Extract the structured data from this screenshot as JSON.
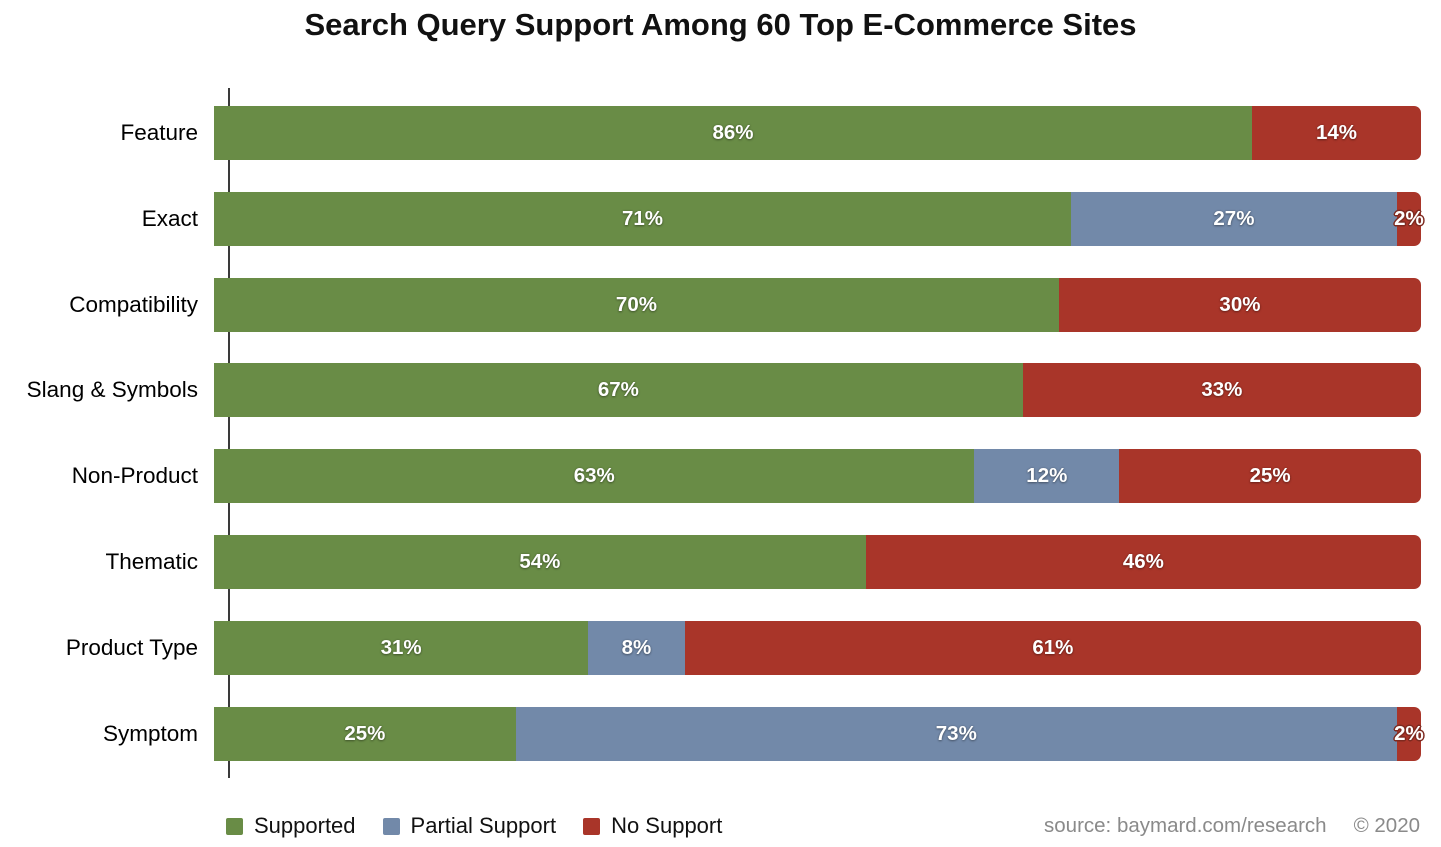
{
  "title": "Search Query Support Among 60 Top E-Commerce Sites",
  "colors": {
    "supported": "#698c46",
    "partial": "#7289a9",
    "none": "#a93529"
  },
  "legend": [
    {
      "key": "supported",
      "label": "Supported"
    },
    {
      "key": "partial",
      "label": "Partial Support"
    },
    {
      "key": "none",
      "label": "No Support"
    }
  ],
  "source": {
    "text": "source: baymard.com/research",
    "copyright": "© 2020"
  },
  "chart_data": {
    "type": "bar",
    "stacked": true,
    "orientation": "horizontal",
    "unit": "%",
    "xlim": [
      0,
      100
    ],
    "categories": [
      "Feature",
      "Exact",
      "Compatibility",
      "Slang & Symbols",
      "Non-Product",
      "Thematic",
      "Product Type",
      "Symptom"
    ],
    "series": [
      {
        "name": "Supported",
        "key": "supported",
        "values": [
          86,
          71,
          70,
          67,
          63,
          54,
          31,
          25
        ]
      },
      {
        "name": "Partial Support",
        "key": "partial",
        "values": [
          0,
          27,
          0,
          0,
          12,
          0,
          8,
          73
        ]
      },
      {
        "name": "No Support",
        "key": "none",
        "values": [
          14,
          2,
          30,
          33,
          25,
          46,
          61,
          2
        ]
      }
    ],
    "bar_value_labels": "percent shown centered on each nonzero segment"
  }
}
